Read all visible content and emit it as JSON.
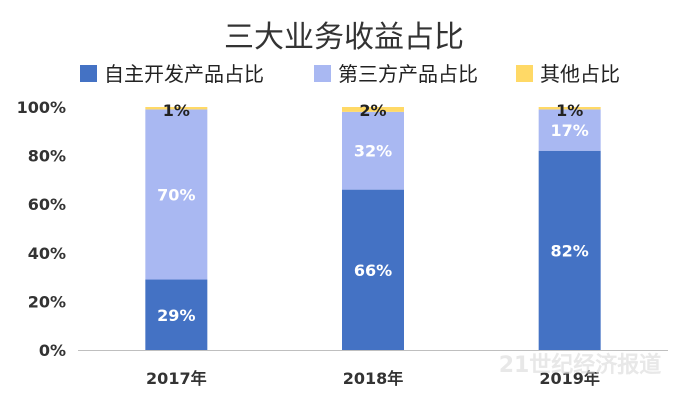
{
  "chart_data": {
    "type": "bar",
    "stacked": true,
    "title": "三大业务收益占比",
    "categories": [
      "2017年",
      "2018年",
      "2019年"
    ],
    "series": [
      {
        "name": "自主开发产品占比",
        "values": [
          29,
          66,
          82
        ],
        "labels": [
          "29%",
          "66%",
          "82%"
        ],
        "color": "#4472C4",
        "label_color": "#ffffff"
      },
      {
        "name": "第三方产品占比",
        "values": [
          70,
          32,
          17
        ],
        "labels": [
          "70%",
          "32%",
          "17%"
        ],
        "color": "#A9B8F2",
        "label_color": "#ffffff"
      },
      {
        "name": "其他占比",
        "values": [
          1,
          2,
          1
        ],
        "labels": [
          "1%",
          "2%",
          "1%"
        ],
        "color": "#FFD966",
        "label_color": "#222222"
      }
    ],
    "ylim": [
      0,
      100
    ],
    "yticks": [
      0,
      20,
      40,
      60,
      80,
      100
    ],
    "ytick_labels": [
      "0%",
      "20%",
      "40%",
      "60%",
      "80%",
      "100%"
    ],
    "grid": false,
    "legend": "top-center",
    "watermark": "21世纪经济报道"
  }
}
